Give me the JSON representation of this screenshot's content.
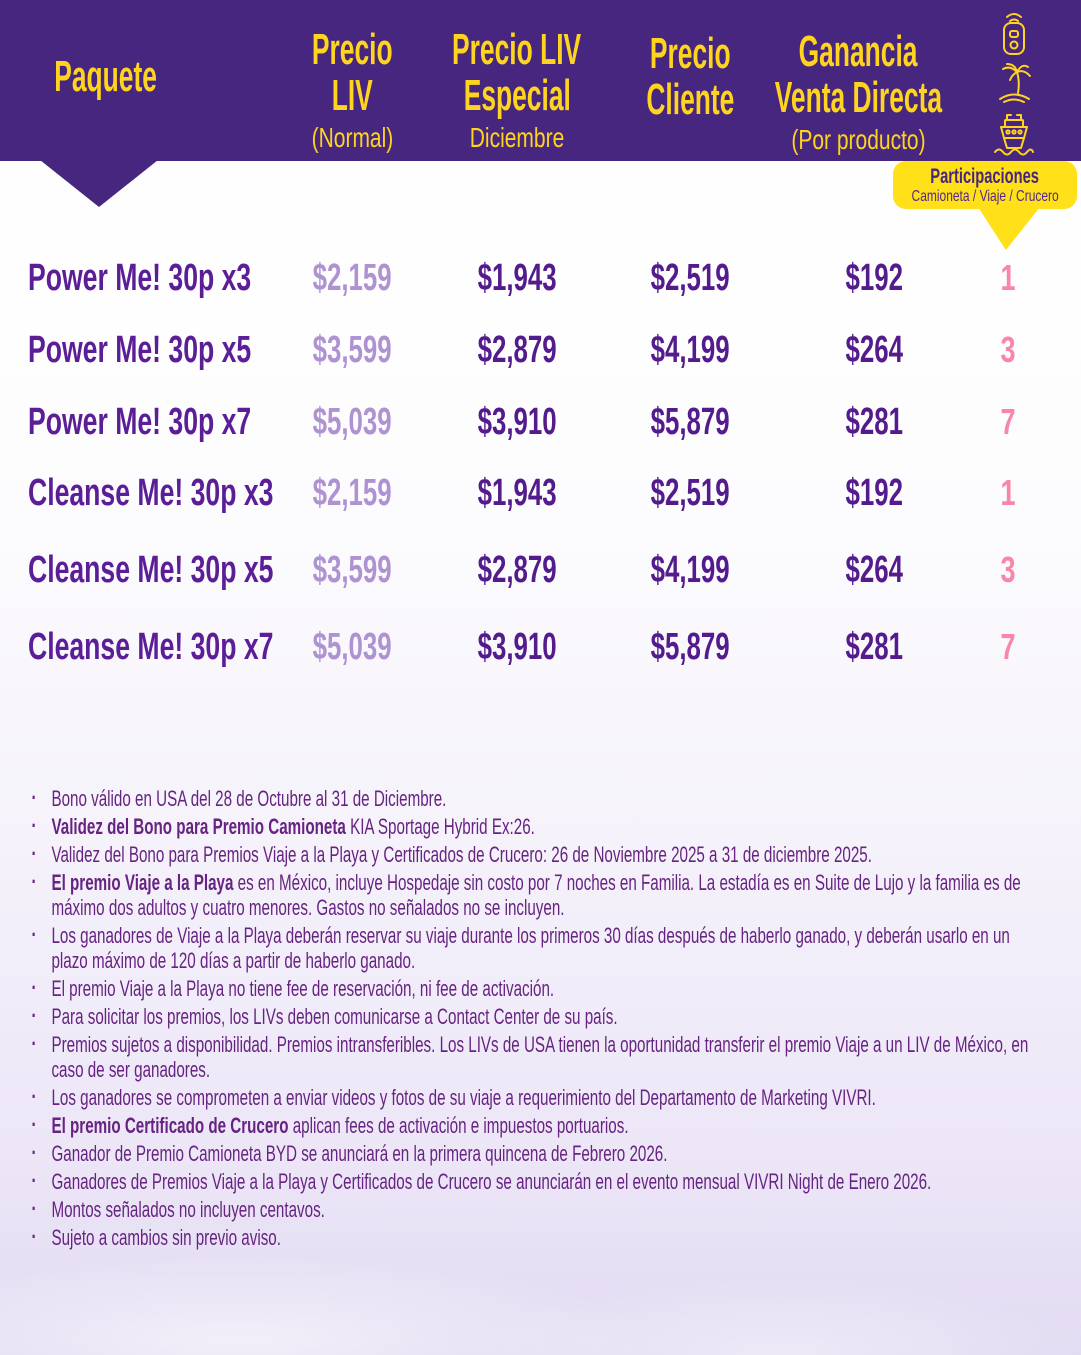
{
  "colors": {
    "band": "#46267E",
    "yellow_text": "#FFD41E",
    "yellow_bubble": "#FFE019",
    "purple_name": "#5B1E97",
    "purple_dark": "#541B8C",
    "purple_light": "#AE92D2",
    "pink": "#F985A8",
    "notes": "#672381"
  },
  "header": {
    "col_paquete": {
      "label": "Paquete"
    },
    "col_precio_liv": {
      "line1": "Precio",
      "line2": "LIV",
      "sub": "(Normal)"
    },
    "col_precio_liv_especial": {
      "line1": "Precio LIV",
      "line2": "Especial",
      "sub": "Diciembre"
    },
    "col_precio_cliente": {
      "line1": "Precio",
      "line2": "Cliente"
    },
    "col_ganancia": {
      "line1": "Ganancia",
      "line2": "Venta Directa",
      "sub": "(Por producto)"
    },
    "icons": [
      "car-key-icon",
      "palm-island-icon",
      "cruise-ship-icon"
    ],
    "participaciones": {
      "title": "Participaciones",
      "subtitle": "Camioneta / Viaje / Crucero"
    }
  },
  "table": {
    "rows": [
      {
        "name": "Power Me! 30p x3",
        "liv": "$2,159",
        "especial": "$1,943",
        "cliente": "$2,519",
        "ganancia": "$192",
        "part": "1"
      },
      {
        "name": "Power Me! 30p x5",
        "liv": "$3,599",
        "especial": "$2,879",
        "cliente": "$4,199",
        "ganancia": "$264",
        "part": "3"
      },
      {
        "name": "Power Me! 30p x7",
        "liv": "$5,039",
        "especial": "$3,910",
        "cliente": "$5,879",
        "ganancia": "$281",
        "part": "7"
      },
      {
        "name": "Cleanse Me! 30p x3",
        "liv": "$2,159",
        "especial": "$1,943",
        "cliente": "$2,519",
        "ganancia": "$192",
        "part": "1"
      },
      {
        "name": "Cleanse Me! 30p x5",
        "liv": "$3,599",
        "especial": "$2,879",
        "cliente": "$4,199",
        "ganancia": "$264",
        "part": "3"
      },
      {
        "name": "Cleanse Me! 30p x7",
        "liv": "$5,039",
        "especial": "$3,910",
        "cliente": "$5,879",
        "ganancia": "$281",
        "part": "7"
      }
    ]
  },
  "notes": [
    {
      "bold": "",
      "text": "Bono válido en USA del 28 de Octubre al 31 de Diciembre."
    },
    {
      "bold": "Validez del Bono para Premio Camioneta",
      "text": " KIA Sportage Hybrid Ex:26."
    },
    {
      "bold": "",
      "text": "Validez del Bono para Premios Viaje a la Playa y Certificados de Crucero: 26 de Noviembre 2025 a 31 de diciembre 2025."
    },
    {
      "bold": "El premio Viaje a la Playa",
      "text": " es en México, incluye Hospedaje sin costo por 7 noches en Familia. La estadía es en Suite de Lujo y la familia es de máximo dos adultos y cuatro menores. Gastos no señalados no se incluyen."
    },
    {
      "bold": "",
      "text": "Los ganadores de Viaje a la Playa deberán reservar su viaje durante los primeros 30 días después de haberlo ganado, y deberán usarlo en un plazo máximo de 120 días a partir de haberlo ganado."
    },
    {
      "bold": "",
      "text": "El premio Viaje a la Playa no tiene fee de reservación, ni fee de activación."
    },
    {
      "bold": "",
      "text": "Para solicitar los premios, los LIVs deben comunicarse a Contact Center de su país."
    },
    {
      "bold": "",
      "text": "Premios sujetos a disponibilidad. Premios intransferibles. Los LIVs de USA tienen la oportunidad transferir el premio Viaje a un LIV de México, en caso de ser ganadores."
    },
    {
      "bold": "",
      "text": "Los ganadores se comprometen a enviar videos y fotos de su viaje a requerimiento del Departamento de Marketing VIVRI."
    },
    {
      "bold": "El premio Certificado de Crucero",
      "text": " aplican fees de activación e impuestos portuarios."
    },
    {
      "bold": "",
      "text": "Ganador de Premio Camioneta BYD se anunciará en la primera quincena de Febrero 2026."
    },
    {
      "bold": "",
      "text": "Ganadores de Premios Viaje a la Playa y Certificados de Crucero se anunciarán en el evento mensual VIVRI Night de Enero 2026."
    },
    {
      "bold": "",
      "text": "Montos señalados no incluyen centavos."
    },
    {
      "bold": "",
      "text": "Sujeto a cambios sin previo aviso."
    }
  ]
}
